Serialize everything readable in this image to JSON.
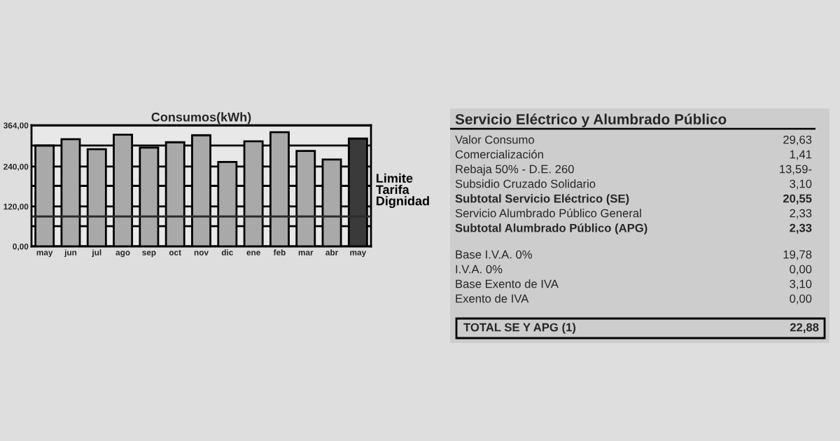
{
  "chart_data": [
    {
      "type": "bar",
      "title": "Consumos(kWh)",
      "categories": [
        "may",
        "jun",
        "jul",
        "ago",
        "sep",
        "oct",
        "nov",
        "dic",
        "ene",
        "feb",
        "mar",
        "abr",
        "may"
      ],
      "values": [
        303,
        322,
        292,
        336,
        297,
        313,
        334,
        254,
        316,
        343,
        287,
        261,
        324
      ],
      "colors": [
        "#a9a9a9",
        "#a9a9a9",
        "#a9a9a9",
        "#a9a9a9",
        "#a9a9a9",
        "#a9a9a9",
        "#a9a9a9",
        "#a9a9a9",
        "#a9a9a9",
        "#a9a9a9",
        "#a9a9a9",
        "#a9a9a9",
        "#3a3a3a"
      ],
      "ylim": [
        0,
        364
      ],
      "yticks": [
        {
          "value": 0,
          "label": "0,00"
        },
        {
          "value": 60.67,
          "label": null
        },
        {
          "value": 120,
          "label": "120,00"
        },
        {
          "value": 182,
          "label": null
        },
        {
          "value": 240,
          "label": "240,00"
        },
        {
          "value": 303.33,
          "label": null
        },
        {
          "value": 364,
          "label": "364,00"
        }
      ],
      "grid": "y",
      "ref_lines": [
        {
          "axis": "y",
          "value": 90,
          "label": "Limite\nTarifa\nDignidad",
          "color": "#2b2b2b"
        }
      ]
    },
    {
      "type": "other",
      "title": "Servicio Eléctrico y Alumbrado Público",
      "annotations": [
        "Valor Consumo",
        "29,63",
        "Comercialización",
        "1,41",
        "Rebaja 50% - D.E. 260",
        "13,59-",
        "Subsidio Cruzado Solidario",
        "3,10",
        "Subtotal Servicio Eléctrico (SE)",
        "20,55",
        "Servicio Alumbrado Público General",
        "2,33",
        "Subtotal Alumbrado Público (APG)",
        "2,33",
        "Base I.V.A. 0%",
        "19,78",
        "I.V.A. 0%",
        "0,00",
        "Base Exento de IVA",
        "3,10",
        "Exento de IVA",
        "0,00",
        "TOTAL SE Y APG (1)",
        "22,88"
      ]
    }
  ]
}
